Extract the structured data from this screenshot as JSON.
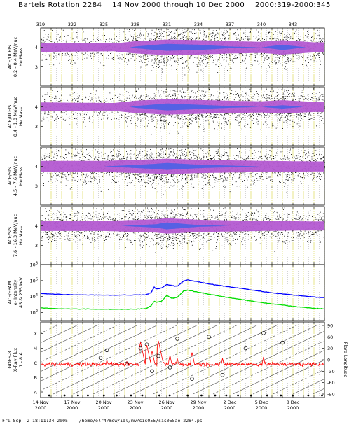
{
  "title": "Bartels Rotation 2284    14 Nov 2000 through 10 Dec 2000    2000:319-2000:345",
  "footer": "Fri Sep  2 18:11:34 2005    /home/elr4/mew/idl/mw/sis055/sis055ao_2284.ps",
  "colors": {
    "scatter": "#000000",
    "density_mid": "#b45ad2",
    "density_high": "#4a62e6",
    "grid_yellow": "#d8d23a",
    "grid_gray": "#b8b8b8",
    "epam_high": "#0000ff",
    "epam_low": "#00dd00",
    "xray": "#ff0000"
  },
  "chart_data": [
    {
      "type": "scatter",
      "panel": "ace-uleis-low",
      "ylabel_lines": [
        "ACE/ULEIS",
        "0.2 - 0.4 MeV/nuc",
        "He Mass"
      ],
      "ylim": [
        2,
        5
      ],
      "yticks": [
        "3",
        "4"
      ],
      "doy_ticks": [
        "319",
        "322",
        "325",
        "328",
        "331",
        "334",
        "337",
        "340",
        "343"
      ],
      "band_center": 4.0,
      "activity": [
        [
          319,
          0.4
        ],
        [
          322,
          0.35
        ],
        [
          326,
          0.3
        ],
        [
          328,
          0.7
        ],
        [
          331,
          1.0
        ],
        [
          334,
          0.9
        ],
        [
          337,
          0.7
        ],
        [
          340,
          0.6
        ],
        [
          342,
          0.9
        ],
        [
          345,
          0.5
        ]
      ]
    },
    {
      "type": "scatter",
      "panel": "ace-uleis-high",
      "ylabel_lines": [
        "ACE/ULEIS",
        "0.4 - 1.0 MeV/nuc",
        "He Mass"
      ],
      "ylim": [
        2,
        5
      ],
      "yticks": [
        "3",
        "4"
      ],
      "band_center": 4.0,
      "activity": [
        [
          319,
          0.4
        ],
        [
          322,
          0.35
        ],
        [
          326,
          0.3
        ],
        [
          328,
          0.7
        ],
        [
          331,
          1.0
        ],
        [
          334,
          0.85
        ],
        [
          337,
          0.7
        ],
        [
          340,
          0.6
        ],
        [
          342,
          0.8
        ],
        [
          345,
          0.5
        ]
      ]
    },
    {
      "type": "scatter",
      "panel": "ace-sis-low",
      "ylabel_lines": [
        "ACE/SIS",
        "4.5 - 7.6 MeV/nuc",
        "He Mass"
      ],
      "ylim": [
        2,
        5
      ],
      "yticks": [
        "3",
        "4"
      ],
      "band_center": 4.0,
      "activity": [
        [
          319,
          0.6
        ],
        [
          325,
          0.6
        ],
        [
          330,
          0.9
        ],
        [
          331,
          1.0
        ],
        [
          334,
          0.8
        ],
        [
          340,
          0.6
        ],
        [
          345,
          0.5
        ]
      ]
    },
    {
      "type": "scatter",
      "panel": "ace-sis-high",
      "ylabel_lines": [
        "ACE/SIS",
        "7.6 - 16.3 MeV/nuc",
        "He Mass"
      ],
      "ylim": [
        2,
        5
      ],
      "yticks": [
        "3",
        "4"
      ],
      "band_center": 4.0,
      "activity": [
        [
          319,
          0.5
        ],
        [
          325,
          0.5
        ],
        [
          330,
          0.8
        ],
        [
          331,
          1.0
        ],
        [
          334,
          0.7
        ],
        [
          340,
          0.5
        ],
        [
          345,
          0.4
        ]
      ]
    },
    {
      "type": "line",
      "panel": "ace-epam",
      "ylabel_lines": [
        "ACE/EPAM",
        "e- Intensity",
        "45 & 235 keV"
      ],
      "log_y": true,
      "ylim": [
        10,
        100000000
      ],
      "yticks": [
        "10^2",
        "10^4",
        "10^6",
        "10^8"
      ],
      "series": [
        {
          "color": "#0000ff",
          "x": [
            319,
            320,
            322,
            324,
            326,
            328,
            329,
            329.5,
            329.8,
            330,
            330.5,
            331,
            331.5,
            332,
            332.6,
            333,
            334,
            335,
            336,
            337,
            338,
            339,
            340,
            341,
            342,
            343,
            344,
            345,
            346
          ],
          "y": [
            25000,
            21000,
            17000,
            16000,
            15000,
            16000,
            17000,
            30000,
            150000,
            90000,
            120000,
            320000,
            230000,
            200000,
            900000,
            1200000,
            700000,
            380000,
            250000,
            160000,
            110000,
            70000,
            45000,
            30000,
            22000,
            16000,
            12000,
            9000,
            7000
          ]
        },
        {
          "color": "#00dd00",
          "x": [
            319,
            320,
            322,
            324,
            326,
            328,
            329,
            329.5,
            329.8,
            330,
            330.5,
            331,
            331.5,
            332,
            332.6,
            333,
            334,
            335,
            336,
            337,
            338,
            339,
            340,
            341,
            342,
            343,
            344,
            345,
            346
          ],
          "y": [
            400,
            330,
            280,
            270,
            260,
            270,
            300,
            700,
            2500,
            2000,
            2500,
            14000,
            6000,
            8000,
            50000,
            65000,
            35000,
            20000,
            12000,
            7000,
            4500,
            2800,
            1800,
            1200,
            900,
            600,
            450,
            340,
            280
          ]
        }
      ]
    },
    {
      "type": "line",
      "panel": "goes-xray",
      "ylabel_lines": [
        "GOES-8",
        "X-Ray Flux",
        "1 - 8 A"
      ],
      "yticks_left": [
        "A",
        "B",
        "C",
        "M",
        "X"
      ],
      "ylabel_right": "Flare Longitude",
      "yticks_right": [
        "90",
        "60",
        "30",
        "0",
        "-30",
        "-60",
        "-90"
      ],
      "ylim_right": [
        -90,
        90
      ],
      "xtick_labels": [
        [
          "14 Nov",
          "2000"
        ],
        [
          "17 Nov",
          "2000"
        ],
        [
          "20 Nov",
          "2000"
        ],
        [
          "23 Nov",
          "2000"
        ],
        [
          "26 Nov",
          "2000"
        ],
        [
          "29 Nov",
          "2000"
        ],
        [
          "2 Dec",
          "2000"
        ],
        [
          "5 Dec",
          "2000"
        ],
        [
          "8 Dec",
          "2000"
        ]
      ],
      "flux_baseline_class": "C",
      "flares": [
        {
          "day": 324.7,
          "class": 1.6,
          "lon": 5
        },
        {
          "day": 325.3,
          "class": 2.2,
          "lon": 25
        },
        {
          "day": 327.2,
          "class": 2.1,
          "lon": -10
        },
        {
          "day": 328.5,
          "class": 3.4,
          "lon": 30
        },
        {
          "day": 329.1,
          "class": 3.2,
          "lon": 40
        },
        {
          "day": 329.6,
          "class": 2.8,
          "lon": -30
        },
        {
          "day": 330.2,
          "class": 3.5,
          "lon": 10
        },
        {
          "day": 331.3,
          "class": 2.5,
          "lon": -20
        },
        {
          "day": 332.0,
          "class": 2.3,
          "lon": 55
        },
        {
          "day": 333.4,
          "class": 2.7,
          "lon": -50
        },
        {
          "day": 335.0,
          "class": 1.9,
          "lon": 60
        },
        {
          "day": 336.3,
          "class": 2.3,
          "lon": -40
        },
        {
          "day": 338.5,
          "class": 1.8,
          "lon": 30
        },
        {
          "day": 340.2,
          "class": 2.4,
          "lon": 70
        },
        {
          "day": 342.0,
          "class": 2.0,
          "lon": 45
        }
      ]
    }
  ]
}
